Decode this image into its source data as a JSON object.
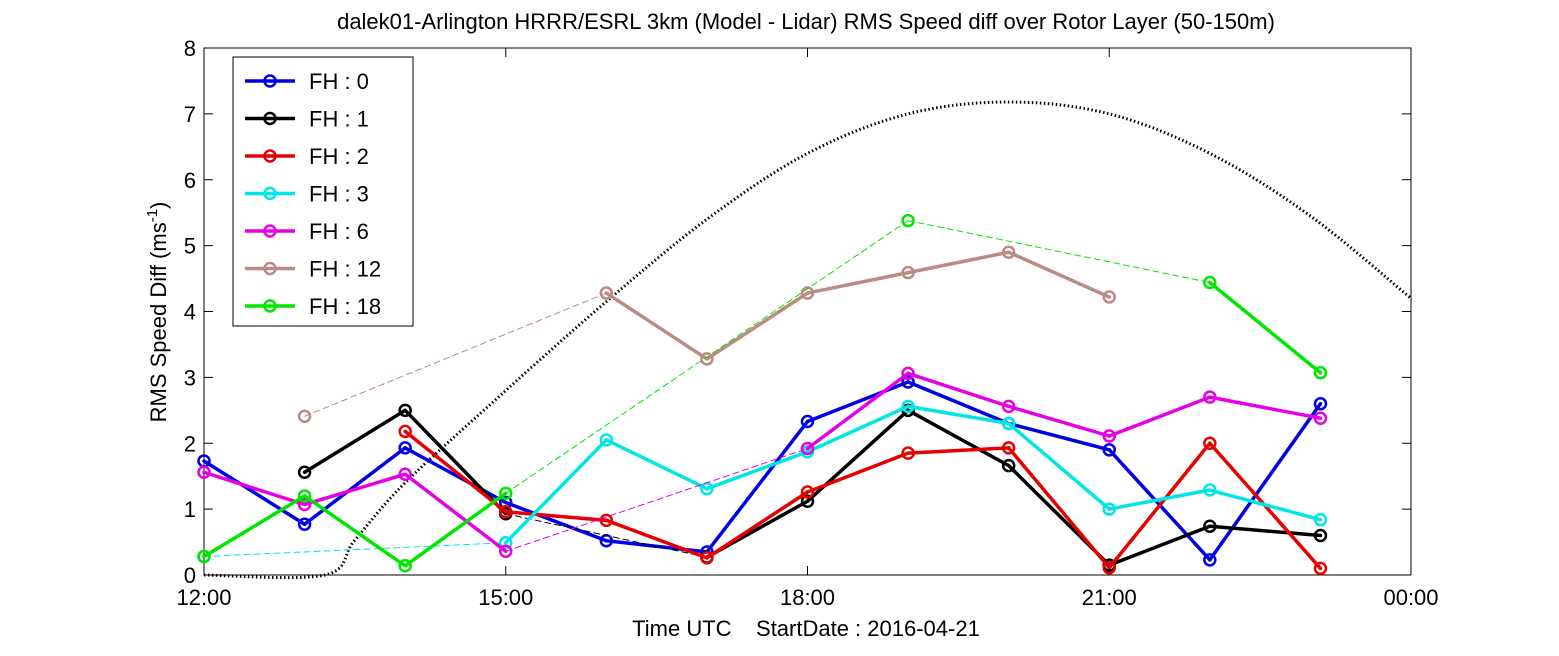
{
  "chart_data": {
    "type": "line",
    "title": "dalek01-Arlington HRRR/ESRL 3km (Model - Lidar) RMS Speed diff over Rotor Layer (50-150m)",
    "xlabel": "Time UTC    StartDate : 2016-04-21",
    "ylabel_main": "RMS Speed Diff (ms",
    "ylabel_sup": "-1",
    "ylabel_tail": ")",
    "xlim": [
      12,
      24
    ],
    "ylim": [
      0,
      8
    ],
    "x_ticks": [
      12,
      15,
      18,
      21,
      24
    ],
    "x_tick_labels": [
      "12:00",
      "15:00",
      "18:00",
      "21:00",
      "00:00"
    ],
    "y_ticks": [
      0,
      1,
      2,
      3,
      4,
      5,
      6,
      7,
      8
    ],
    "y_tick_labels": [
      "0",
      "1",
      "2",
      "3",
      "4",
      "5",
      "6",
      "7",
      "8"
    ],
    "grid": false,
    "legend_position": "top-left",
    "series": [
      {
        "name": "FH : 0",
        "color": "#0000e6",
        "x": [
          12,
          13,
          14,
          15,
          16,
          17,
          18,
          19,
          20,
          21,
          22,
          23.1
        ],
        "y": [
          1.73,
          0.77,
          1.93,
          1.1,
          0.52,
          0.35,
          2.33,
          2.93,
          2.3,
          1.9,
          0.23,
          2.6
        ]
      },
      {
        "name": "FH : 1",
        "color": "#000000",
        "x": [
          13,
          14,
          15,
          17,
          18,
          19,
          20,
          21,
          22,
          23.1
        ],
        "y": [
          1.56,
          2.5,
          0.93,
          0.27,
          1.12,
          2.5,
          1.66,
          0.15,
          0.74,
          0.6
        ]
      },
      {
        "name": "FH : 2",
        "color": "#e60000",
        "x": [
          14,
          15,
          16,
          17,
          18,
          19,
          20,
          21,
          22,
          23.1
        ],
        "y": [
          2.18,
          0.96,
          0.83,
          0.26,
          1.26,
          1.85,
          1.93,
          0.11,
          2.0,
          0.1
        ]
      },
      {
        "name": "FH : 3",
        "color": "#00e6e6",
        "x": [
          12,
          15,
          16,
          17,
          18,
          19,
          20,
          21,
          22,
          23.1
        ],
        "y": [
          0.28,
          0.49,
          2.05,
          1.31,
          1.87,
          2.56,
          2.3,
          1.0,
          1.29,
          0.84
        ]
      },
      {
        "name": "FH : 6",
        "color": "#e600e6",
        "x": [
          12,
          13,
          14,
          15,
          18,
          19,
          20,
          21,
          22,
          23.1
        ],
        "y": [
          1.56,
          1.07,
          1.53,
          0.36,
          1.92,
          3.06,
          2.56,
          2.11,
          2.7,
          2.38
        ]
      },
      {
        "name": "FH : 12",
        "color": "#bc8a84",
        "x": [
          13,
          16,
          17,
          18,
          19,
          20,
          21
        ],
        "y": [
          2.41,
          4.28,
          3.28,
          4.28,
          4.59,
          4.9,
          4.22
        ]
      },
      {
        "name": "FH : 18",
        "color": "#00e600",
        "x": [
          12,
          13,
          14,
          15,
          19,
          22,
          23.1
        ],
        "y": [
          0.28,
          1.2,
          0.14,
          1.24,
          5.38,
          4.44,
          3.07
        ]
      }
    ],
    "reference_curve": {
      "style": "dotted",
      "color": "#000000",
      "x": [
        12,
        13.2,
        13.5,
        14,
        15,
        16,
        17,
        18,
        19,
        20,
        21,
        22,
        23,
        24
      ],
      "y": [
        0,
        0,
        0.53,
        1.4,
        2.8,
        4.15,
        5.4,
        6.4,
        7.0,
        7.18,
        7.0,
        6.4,
        5.45,
        4.2
      ]
    }
  }
}
